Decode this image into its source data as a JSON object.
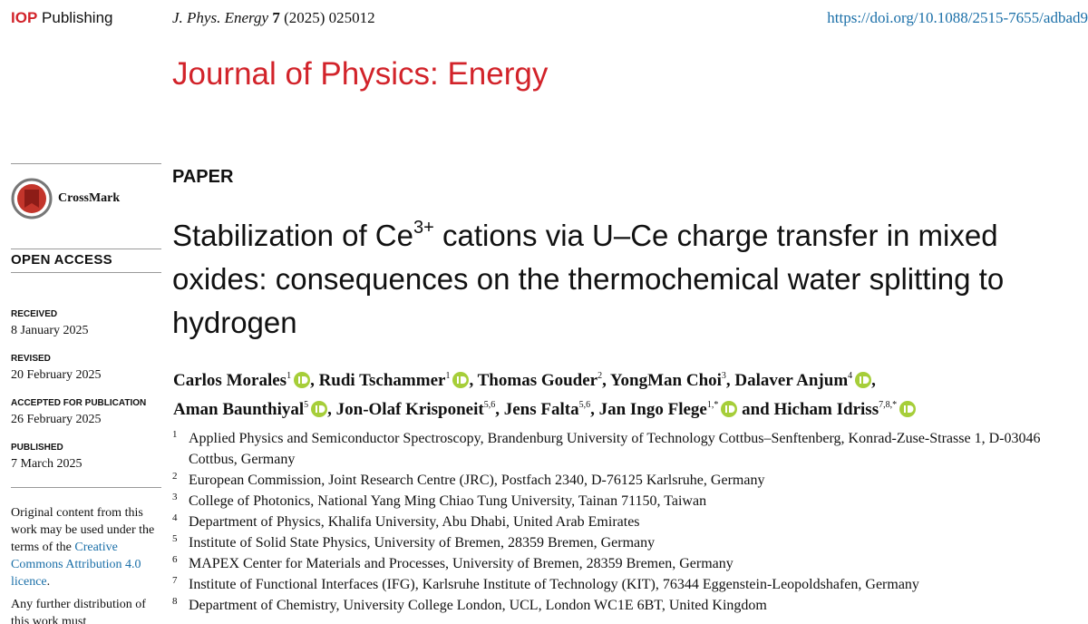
{
  "header": {
    "publisher_mark": "IOP",
    "publisher": "Publishing",
    "journal_abbrev": "J. Phys. Energy",
    "volume": "7",
    "year": "(2025)",
    "article_number": "025012",
    "doi": "https://doi.org/10.1088/2515-7655/adbad9"
  },
  "journal_title": "Journal of Physics: Energy",
  "sidebar": {
    "crossmark": "CrossMark",
    "open_access": "OPEN ACCESS",
    "dates": [
      {
        "label": "RECEIVED",
        "date": "8 January 2025"
      },
      {
        "label": "REVISED",
        "date": "20 February 2025"
      },
      {
        "label": "ACCEPTED FOR PUBLICATION",
        "date": "26 February 2025"
      },
      {
        "label": "PUBLISHED",
        "date": "7 March 2025"
      }
    ],
    "license": {
      "text": "Original content from this work may be used under the terms of the ",
      "link": "Creative Commons Attribution 4.0 licence",
      "end": "."
    },
    "further": "Any further distribution of this work must"
  },
  "article": {
    "type": "PAPER",
    "title": {
      "before": "Stabilization of Ce",
      "sup": "3+",
      "after": " cations via U–Ce charge transfer in mixed oxides: consequences on the thermochemical water splitting to hydrogen"
    },
    "separator": ",",
    "conjunction": "and",
    "authors": [
      {
        "name": "Carlos Morales",
        "affil": "1",
        "orcid": true
      },
      {
        "name": "Rudi Tschammer",
        "affil": "1",
        "orcid": true
      },
      {
        "name": "Thomas Gouder",
        "affil": "2",
        "orcid": false
      },
      {
        "name": "YongMan Choi",
        "affil": "3",
        "orcid": false
      },
      {
        "name": "Dalaver Anjum",
        "affil": "4",
        "orcid": true
      },
      {
        "name": "Aman Baunthiyal",
        "affil": "5",
        "orcid": true
      },
      {
        "name": "Jon-Olaf Krisponeit",
        "affil": "5,6",
        "orcid": false
      },
      {
        "name": "Jens Falta",
        "affil": "5,6",
        "orcid": false
      },
      {
        "name": "Jan Ingo Flege",
        "affil": "1,*",
        "orcid": true
      },
      {
        "name": "Hicham Idriss",
        "affil": "7,8,*",
        "orcid": true
      }
    ],
    "affiliations": [
      {
        "num": "1",
        "text": "Applied Physics and Semiconductor Spectroscopy, Brandenburg University of Technology Cottbus–Senftenberg, Konrad-Zuse-Strasse 1, D-03046 Cottbus, Germany"
      },
      {
        "num": "2",
        "text": "European Commission, Joint Research Centre (JRC), Postfach 2340, D-76125 Karlsruhe, Germany"
      },
      {
        "num": "3",
        "text": "College of Photonics, National Yang Ming Chiao Tung University, Tainan 71150, Taiwan"
      },
      {
        "num": "4",
        "text": "Department of Physics, Khalifa University, Abu Dhabi, United Arab Emirates"
      },
      {
        "num": "5",
        "text": "Institute of Solid State Physics, University of Bremen, 28359 Bremen, Germany"
      },
      {
        "num": "6",
        "text": "MAPEX Center for Materials and Processes, University of Bremen, 28359 Bremen, Germany"
      },
      {
        "num": "7",
        "text": "Institute of Functional Interfaces (IFG), Karlsruhe Institute of Technology (KIT), 76344 Eggenstein-Leopoldshafen, Germany"
      },
      {
        "num": "8",
        "text": "Department of Chemistry, University College London, UCL, London WC1E 6BT, United Kingdom"
      }
    ]
  }
}
